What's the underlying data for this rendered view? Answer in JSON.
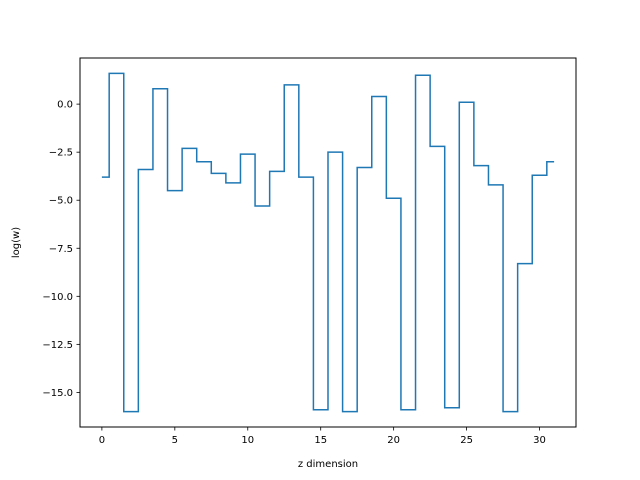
{
  "chart_data": {
    "type": "line",
    "drawstyle": "steps-mid",
    "title": "",
    "xlabel": "z dimension",
    "ylabel": "log(w)",
    "xlim": [
      -1.5,
      32.5
    ],
    "ylim": [
      -16.8,
      2.4
    ],
    "grid": false,
    "color": "#1f77b4",
    "x": [
      0,
      1,
      2,
      3,
      4,
      5,
      6,
      7,
      8,
      9,
      10,
      11,
      12,
      13,
      14,
      15,
      16,
      17,
      18,
      19,
      20,
      21,
      22,
      23,
      24,
      25,
      26,
      27,
      28,
      29,
      30,
      31
    ],
    "y": [
      -3.8,
      1.6,
      -16.0,
      -3.4,
      0.8,
      -4.5,
      -2.3,
      -3.0,
      -3.6,
      -4.1,
      -2.6,
      -5.3,
      -3.5,
      1.0,
      -3.8,
      -15.9,
      -2.5,
      -16.0,
      -3.3,
      0.4,
      -4.9,
      -15.9,
      1.5,
      -2.2,
      -15.8,
      0.1,
      -3.2,
      -4.2,
      -16.0,
      -8.3,
      -3.7,
      -3.0
    ],
    "xticks": [
      0,
      5,
      10,
      15,
      20,
      25,
      30
    ],
    "xtick_labels": [
      "0",
      "5",
      "10",
      "15",
      "20",
      "25",
      "30"
    ],
    "yticks": [
      0.0,
      -2.5,
      -5.0,
      -7.5,
      -10.0,
      -12.5,
      -15.0
    ],
    "ytick_labels": [
      "0.0",
      "−2.5",
      "−5.0",
      "−7.5",
      "−10.0",
      "−12.5",
      "−15.0"
    ]
  }
}
